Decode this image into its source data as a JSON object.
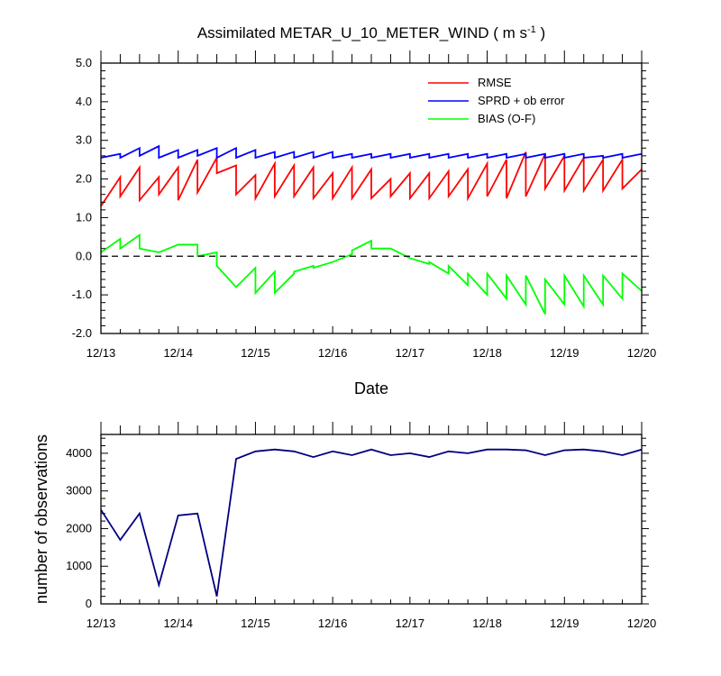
{
  "chart_data": [
    {
      "type": "line",
      "title": "Assimilated METAR_U_10_METER_WIND ( m s",
      "title_superscript": "-1",
      "title_suffix": " )",
      "xlabel": "Date",
      "ylabel": "",
      "x_tick_labels": [
        "12/13",
        "12/14",
        "12/15",
        "12/16",
        "12/17",
        "12/18",
        "12/19",
        "12/20"
      ],
      "xlim": [
        0,
        7
      ],
      "ylim": [
        -2.0,
        5.0
      ],
      "y_tick_labels": [
        "-2.0",
        "-1.0",
        "0.0",
        "1.0",
        "2.0",
        "3.0",
        "4.0",
        "5.0"
      ],
      "legend_position": "top-right",
      "zero_line": "dashed",
      "series": [
        {
          "name": "RMSE",
          "color": "#ff0000",
          "x": [
            0,
            0.25,
            0.25,
            0.5,
            0.5,
            0.75,
            0.75,
            1,
            1,
            1.25,
            1.25,
            1.5,
            1.5,
            1.75,
            1.75,
            2,
            2,
            2.25,
            2.25,
            2.5,
            2.5,
            2.75,
            2.75,
            3,
            3,
            3.25,
            3.25,
            3.5,
            3.5,
            3.75,
            3.75,
            4,
            4,
            4.25,
            4.25,
            4.5,
            4.5,
            4.75,
            4.75,
            5,
            5,
            5.25,
            5.25,
            5.5,
            5.5,
            5.75,
            5.75,
            6,
            6,
            6.25,
            6.25,
            6.5,
            6.5,
            6.75,
            6.75,
            7
          ],
          "values": [
            1.3,
            2.05,
            1.55,
            2.3,
            1.45,
            2.05,
            1.6,
            2.3,
            1.45,
            2.5,
            1.65,
            2.55,
            2.15,
            2.35,
            1.6,
            2.1,
            1.5,
            2.4,
            1.55,
            2.35,
            1.55,
            2.3,
            1.5,
            2.15,
            1.5,
            2.3,
            1.5,
            2.25,
            1.5,
            2.0,
            1.55,
            2.15,
            1.5,
            2.15,
            1.5,
            2.2,
            1.55,
            2.25,
            1.5,
            2.4,
            1.55,
            2.5,
            1.5,
            2.7,
            1.55,
            2.65,
            1.75,
            2.6,
            1.7,
            2.55,
            1.7,
            2.5,
            1.7,
            2.5,
            1.75,
            2.25
          ]
        },
        {
          "name": "SPRD + ob error",
          "color": "#0000ff",
          "x": [
            0,
            0.25,
            0.25,
            0.5,
            0.5,
            0.75,
            0.75,
            1,
            1,
            1.25,
            1.25,
            1.5,
            1.5,
            1.75,
            1.75,
            2,
            2,
            2.25,
            2.25,
            2.5,
            2.5,
            2.75,
            2.75,
            3,
            3,
            3.25,
            3.25,
            3.5,
            3.5,
            3.75,
            3.75,
            4,
            4,
            4.25,
            4.25,
            4.5,
            4.5,
            4.75,
            4.75,
            5,
            5,
            5.25,
            5.25,
            5.5,
            5.5,
            5.75,
            5.75,
            6,
            6,
            6.25,
            6.25,
            6.5,
            6.5,
            6.75,
            6.75,
            7
          ],
          "values": [
            2.55,
            2.65,
            2.55,
            2.8,
            2.6,
            2.85,
            2.55,
            2.75,
            2.55,
            2.75,
            2.6,
            2.8,
            2.55,
            2.8,
            2.55,
            2.75,
            2.55,
            2.7,
            2.55,
            2.7,
            2.55,
            2.7,
            2.55,
            2.7,
            2.55,
            2.65,
            2.55,
            2.65,
            2.55,
            2.65,
            2.55,
            2.65,
            2.55,
            2.65,
            2.55,
            2.65,
            2.55,
            2.65,
            2.55,
            2.65,
            2.55,
            2.65,
            2.55,
            2.65,
            2.55,
            2.65,
            2.55,
            2.65,
            2.55,
            2.65,
            2.55,
            2.6,
            2.55,
            2.65,
            2.55,
            2.65
          ]
        },
        {
          "name": "BIAS (O-F)",
          "color": "#00ff00",
          "x": [
            0,
            0.25,
            0.25,
            0.5,
            0.5,
            0.75,
            1,
            1.25,
            1.25,
            1.5,
            1.5,
            1.75,
            2,
            2,
            2.25,
            2.25,
            2.5,
            2.5,
            2.75,
            2.75,
            3,
            3.25,
            3.25,
            3.5,
            3.5,
            3.75,
            4,
            4.25,
            4.25,
            4.5,
            4.5,
            4.75,
            4.75,
            5,
            5,
            5.25,
            5.25,
            5.5,
            5.5,
            5.75,
            5.75,
            6,
            6,
            6.25,
            6.25,
            6.5,
            6.5,
            6.75,
            6.75,
            7
          ],
          "values": [
            0.1,
            0.45,
            0.2,
            0.55,
            0.2,
            0.1,
            0.3,
            0.3,
            0.0,
            0.1,
            -0.25,
            -0.8,
            -0.3,
            -0.95,
            -0.4,
            -0.95,
            -0.45,
            -0.4,
            -0.25,
            -0.3,
            -0.15,
            0.05,
            0.15,
            0.4,
            0.2,
            0.2,
            -0.05,
            -0.2,
            -0.15,
            -0.45,
            -0.25,
            -0.75,
            -0.45,
            -1.0,
            -0.45,
            -1.1,
            -0.5,
            -1.25,
            -0.5,
            -1.5,
            -0.6,
            -1.25,
            -0.5,
            -1.3,
            -0.5,
            -1.25,
            -0.5,
            -1.1,
            -0.45,
            -0.9
          ]
        }
      ]
    },
    {
      "type": "line",
      "title": "",
      "xlabel": "",
      "ylabel": "number of observations",
      "x_tick_labels": [
        "12/13",
        "12/14",
        "12/15",
        "12/16",
        "12/17",
        "12/18",
        "12/19",
        "12/20"
      ],
      "xlim": [
        0,
        7
      ],
      "ylim": [
        0,
        4500
      ],
      "y_tick_labels": [
        "0",
        "1000",
        "2000",
        "3000",
        "4000"
      ],
      "series": [
        {
          "name": "observations",
          "color": "#000080",
          "x": [
            0,
            0.25,
            0.5,
            0.75,
            1,
            1.25,
            1.5,
            1.75,
            2,
            2.25,
            2.5,
            2.75,
            3,
            3.25,
            3.5,
            3.75,
            4,
            4.25,
            4.5,
            4.75,
            5,
            5.25,
            5.5,
            5.75,
            6,
            6.25,
            6.5,
            6.75,
            7
          ],
          "values": [
            2500,
            1700,
            2400,
            500,
            2350,
            2400,
            200,
            3850,
            4050,
            4100,
            4050,
            3900,
            4050,
            3950,
            4100,
            3950,
            4000,
            3900,
            4050,
            4000,
            4100,
            4100,
            4080,
            3950,
            4080,
            4100,
            4050,
            3950,
            4100
          ]
        }
      ]
    }
  ]
}
